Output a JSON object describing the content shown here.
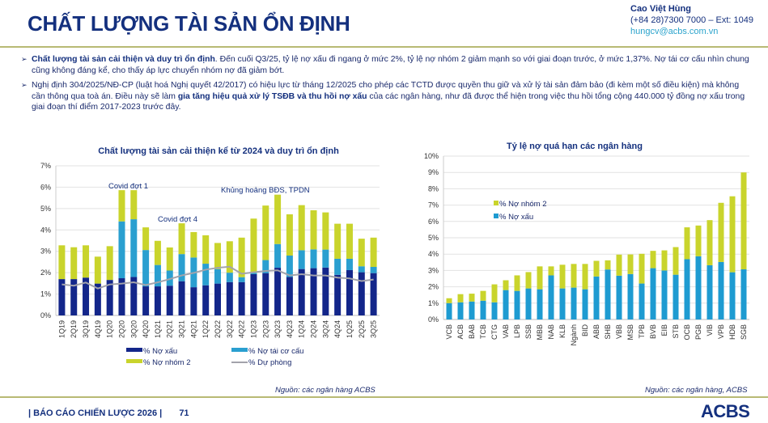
{
  "header": {
    "title": "CHẤT LƯỢNG TÀI SẢN ỔN ĐỊNH"
  },
  "contact": {
    "name": "Cao Việt Hùng",
    "phone": "(+84 28)7300 7000 – Ext: 1049",
    "email": "hungcv@acbs.com.vn"
  },
  "bullets": [
    {
      "bold": "Chất lượng tài sản cải thiện và duy trì ổn định",
      "text": ". Đến cuối Q3/25, tỷ lệ nợ xấu đi ngang ở mức 2%, tỷ lệ nợ nhóm 2 giảm mạnh so với giai đoạn trước, ở mức 1,37%. Nợ tái cơ cấu nhìn chung cũng không đáng kể, cho thấy áp lực chuyển nhóm nợ đã giảm bớt."
    },
    {
      "pre": "Nghị định 304/2025/NĐ-CP (luật hoá Nghị quyết 42/2017) có hiệu lực từ tháng 12/2025 cho phép các TCTD được quyền thu giữ và xử lý tài sản đảm bảo (đi kèm một số điều kiện) mà không cần thông qua toà án. Điều này sẽ làm ",
      "bold": "gia tăng hiệu quả xử lý TSĐB và thu hồi nợ xấu",
      "post": " của các ngân hàng, như đã được thể hiện trong việc thu hồi tổng cộng 440.000 tỷ đồng nợ xấu trong giai đoạn thí điểm 2017-2023 trước đây."
    }
  ],
  "chart_data": [
    {
      "type": "bar",
      "stacked": true,
      "title": "Chất lượng tài sản cải thiện kể từ 2024 và duy trì ổn định",
      "ylim": [
        0,
        7
      ],
      "yticks": [
        "0%",
        "1%",
        "2%",
        "3%",
        "4%",
        "5%",
        "6%",
        "7%"
      ],
      "grid": true,
      "legend": "bottom",
      "categories": [
        "1Q19",
        "2Q19",
        "3Q19",
        "4Q19",
        "1Q20",
        "2Q20",
        "3Q20",
        "4Q20",
        "1Q21",
        "2Q21",
        "3Q21",
        "4Q21",
        "1Q22",
        "2Q22",
        "3Q22",
        "4Q22",
        "1Q23",
        "2Q23",
        "3Q23",
        "4Q23",
        "1Q24",
        "2Q24",
        "3Q24",
        "4Q24",
        "1Q25",
        "2Q25",
        "3Q25"
      ],
      "series": [
        {
          "name": "% Nợ xấu",
          "kind": "bar",
          "color": "#13268a",
          "values": [
            1.7,
            1.7,
            1.77,
            1.49,
            1.66,
            1.74,
            1.8,
            1.36,
            1.36,
            1.39,
            1.6,
            1.32,
            1.41,
            1.49,
            1.56,
            1.56,
            1.93,
            1.98,
            2.23,
            1.8,
            2.17,
            2.21,
            2.24,
            1.9,
            2.12,
            2.02,
            1.98
          ]
        },
        {
          "name": "% Nợ tái cơ cấu",
          "kind": "bar",
          "color": "#2a9fd0",
          "values": [
            0,
            0,
            0,
            0,
            0,
            2.66,
            2.7,
            1.7,
            1.0,
            0.71,
            1.27,
            1.39,
            1.01,
            0.68,
            0.44,
            0.23,
            0.06,
            0.61,
            1.11,
            1.0,
            0.88,
            0.88,
            0.84,
            0.75,
            0.53,
            0.28,
            0.29
          ]
        },
        {
          "name": "% Nợ nhóm 2",
          "kind": "bar",
          "color": "#c9d42c",
          "values": [
            1.58,
            1.49,
            1.51,
            1.26,
            1.58,
            1.46,
            1.36,
            1.06,
            1.13,
            1.08,
            1.44,
            1.19,
            1.33,
            1.22,
            1.47,
            1.85,
            2.54,
            2.55,
            2.31,
            1.93,
            2.11,
            1.83,
            1.74,
            1.64,
            1.64,
            1.29,
            1.37
          ]
        },
        {
          "name": "% Dự phòng",
          "kind": "line",
          "color": "#a3a3ab",
          "values": [
            1.45,
            1.39,
            1.54,
            1.26,
            1.45,
            1.49,
            1.55,
            1.42,
            1.55,
            1.7,
            1.87,
            1.99,
            2.14,
            2.23,
            2.28,
            1.95,
            2.02,
            2.08,
            2.11,
            1.87,
            1.93,
            1.87,
            1.87,
            1.77,
            1.73,
            1.61,
            1.68
          ]
        }
      ],
      "annotations": [
        "Covid đợt 1",
        "Covid đợt 4",
        "Khủng hoảng BĐS, TPDN"
      ],
      "source": "Nguồn: các ngân hàng ACBS"
    },
    {
      "type": "bar",
      "stacked": true,
      "title": "Tỷ lệ nợ quá hạn các ngân hàng",
      "ylim": [
        0,
        10
      ],
      "yticks": [
        "0%",
        "1%",
        "2%",
        "3%",
        "4%",
        "5%",
        "6%",
        "7%",
        "8%",
        "9%",
        "10%"
      ],
      "grid": true,
      "legend": "top-left",
      "categories": [
        "VCB",
        "ACB",
        "BAB",
        "TCB",
        "CTG",
        "VAB",
        "LPB",
        "SSB",
        "MBB",
        "NAB",
        "KLB",
        "Ngành",
        "BID",
        "ABB",
        "SHB",
        "VBB",
        "MSB",
        "TPB",
        "BVB",
        "EIB",
        "STB",
        "OCB",
        "PGB",
        "VIB",
        "VPB",
        "HDB",
        "SGB"
      ],
      "series": [
        {
          "name": "% Nợ xấu",
          "color": "#1e9bd1",
          "values": [
            1.0,
            1.05,
            1.1,
            1.15,
            1.05,
            1.8,
            1.75,
            1.9,
            1.85,
            2.7,
            1.9,
            1.95,
            1.85,
            2.63,
            3.06,
            2.68,
            2.78,
            2.2,
            3.14,
            3.0,
            2.74,
            3.69,
            3.87,
            3.32,
            3.52,
            2.89,
            3.07
          ]
        },
        {
          "name": "% Nợ nhóm 2",
          "color": "#c9d42c",
          "values": [
            0.3,
            0.5,
            0.48,
            0.6,
            1.1,
            0.6,
            0.95,
            1.0,
            1.4,
            0.55,
            1.45,
            1.45,
            1.55,
            0.96,
            0.56,
            1.29,
            1.2,
            1.82,
            1.06,
            1.23,
            1.69,
            1.95,
            1.88,
            2.76,
            3.62,
            4.65,
            5.93
          ]
        }
      ],
      "source": "Nguồn: các ngân hàng, ACBS"
    }
  ],
  "footer": {
    "report": "| BÁO CÁO CHIẾN LƯỢC 2026 |",
    "page": "71",
    "logo": "ACBS"
  }
}
